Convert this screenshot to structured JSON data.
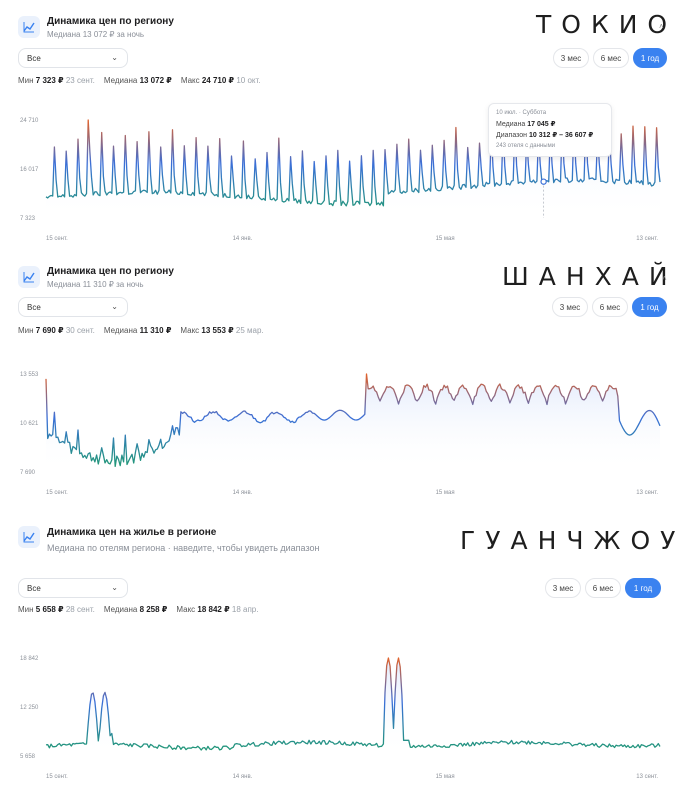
{
  "panels": [
    {
      "city": "ТОКИО",
      "title": "Динамика цен по региону",
      "subtitle": "Медиана 13 072 ₽ за ночь",
      "select_value": "Все",
      "ranges": [
        "3 мес",
        "6 мес",
        "1 год"
      ],
      "active_range": "1 год",
      "stats": {
        "min_label": "Мин",
        "min_value": "7 323 ₽",
        "min_date": "23 сент.",
        "median_label": "Медиана",
        "median_value": "13 072 ₽",
        "max_label": "Макс",
        "max_value": "24 710 ₽",
        "max_date": "10 окт."
      },
      "tooltip": {
        "date": "10 июл. · Суббота",
        "median_label": "Медиана",
        "median_value": "17 045 ₽",
        "range_label": "Диапазон",
        "range_value": "10 312 ₽ – 36 607 ₽",
        "note": "243 отеля с данными"
      }
    },
    {
      "city": "ШАНХАЙ",
      "title": "Динамика цен по региону",
      "subtitle": "Медиана 11 310 ₽ за ночь",
      "select_value": "Все",
      "ranges": [
        "3 мес",
        "6 мес",
        "1 год"
      ],
      "active_range": "1 год",
      "stats": {
        "min_label": "Мин",
        "min_value": "7 690 ₽",
        "min_date": "30 сент.",
        "median_label": "Медиана",
        "median_value": "11 310 ₽",
        "max_label": "Макс",
        "max_value": "13 553 ₽",
        "max_date": "25 мар."
      }
    },
    {
      "city": "ГУАНЧЖОУ",
      "title": "Динамика цен на жилье в регионе",
      "subtitle": "Медиана по отелям региона · наведите, чтобы увидеть диапазон",
      "select_value": "Все",
      "ranges": [
        "3 мес",
        "6 мес",
        "1 год"
      ],
      "active_range": "1 год",
      "stats": {
        "min_label": "Мин",
        "min_value": "5 658 ₽",
        "min_date": "28 сент.",
        "median_label": "Медиана",
        "median_value": "8 258 ₽",
        "max_label": "Макс",
        "max_value": "18 842 ₽",
        "max_date": "18 апр."
      }
    }
  ],
  "chart_data": [
    {
      "type": "line",
      "series_kind": "tokyo",
      "x_tick_labels": [
        "15 сент.",
        "14 янв.",
        "15 мая",
        "13 сент."
      ],
      "y_tick_labels": [
        "24 710",
        "16 017",
        "7 323"
      ],
      "ylim": [
        7323,
        24710
      ],
      "min": 7323,
      "median": 13072,
      "max": 24710,
      "grid": false,
      "colors": {
        "low": "#1f9d6b",
        "mid": "#3a6fd8",
        "high": "#e2622b"
      }
    },
    {
      "type": "line",
      "series_kind": "shanghai",
      "x_tick_labels": [
        "15 сент.",
        "14 янв.",
        "15 мая",
        "13 сент."
      ],
      "y_tick_labels": [
        "13 553",
        "10 621",
        "7 690"
      ],
      "ylim": [
        7690,
        13553
      ],
      "min": 7690,
      "median": 11310,
      "max": 13553,
      "grid": false,
      "colors": {
        "low": "#1f9d6b",
        "mid": "#3a6fd8",
        "high": "#e2622b"
      }
    },
    {
      "type": "line",
      "series_kind": "guangzhou",
      "x_tick_labels": [
        "15 сент.",
        "14 янв.",
        "15 мая",
        "13 сент."
      ],
      "y_tick_labels": [
        "18 842",
        "12 250",
        "5 658"
      ],
      "ylim": [
        5658,
        18842
      ],
      "min": 5658,
      "median": 8258,
      "max": 18842,
      "grid": false,
      "colors": {
        "low": "#1f9d6b",
        "mid": "#3a6fd8",
        "high": "#e2622b"
      }
    }
  ]
}
